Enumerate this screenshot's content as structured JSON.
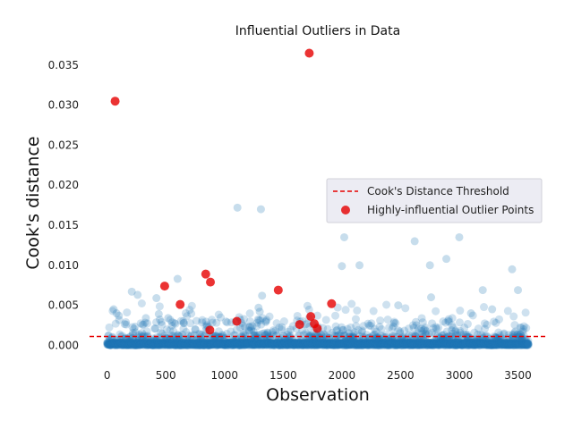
{
  "chart_data": {
    "type": "scatter",
    "title": "Influential Outliers in Data",
    "xlabel": "Observation",
    "ylabel": "Cook's distance",
    "xlim": [
      -150,
      3740
    ],
    "ylim": [
      -0.0013,
      0.037
    ],
    "xticks": [
      0,
      500,
      1000,
      1500,
      2000,
      2500,
      3000,
      3500
    ],
    "xtick_labels": [
      "0",
      "500",
      "1000",
      "1500",
      "2000",
      "2500",
      "3000",
      "3500"
    ],
    "yticks": [
      0.0,
      0.005,
      0.01,
      0.015,
      0.02,
      0.025,
      0.03,
      0.035
    ],
    "ytick_labels": [
      "0.000",
      "0.005",
      "0.010",
      "0.015",
      "0.020",
      "0.025",
      "0.030",
      "0.035"
    ],
    "grid": false,
    "threshold": {
      "name": "Cook's Distance Threshold",
      "y": 0.0011,
      "color": "#e60000"
    },
    "series": [
      {
        "name": "Highly-influential Outlier Points",
        "color": "#e60000",
        "points": [
          [
            68,
            0.0305
          ],
          [
            1722,
            0.0365
          ],
          [
            490,
            0.0074
          ],
          [
            622,
            0.0051
          ],
          [
            840,
            0.0089
          ],
          [
            880,
            0.0079
          ],
          [
            875,
            0.0019
          ],
          [
            1105,
            0.003
          ],
          [
            1458,
            0.0069
          ],
          [
            1640,
            0.0026
          ],
          [
            1735,
            0.0036
          ],
          [
            1765,
            0.0027
          ],
          [
            1790,
            0.0021
          ],
          [
            1912,
            0.0052
          ]
        ]
      }
    ],
    "background_points": {
      "color": "#1f77b4",
      "count": 3600,
      "x_range": [
        0,
        3590
      ],
      "notable_points": [
        [
          55,
          0.0045
        ],
        [
          80,
          0.004
        ],
        [
          100,
          0.0037
        ],
        [
          210,
          0.0067
        ],
        [
          260,
          0.0063
        ],
        [
          330,
          0.0034
        ],
        [
          420,
          0.0059
        ],
        [
          440,
          0.0039
        ],
        [
          520,
          0.0034
        ],
        [
          600,
          0.0083
        ],
        [
          1110,
          0.0172
        ],
        [
          1310,
          0.017
        ],
        [
          1320,
          0.0062
        ],
        [
          1290,
          0.0047
        ],
        [
          1300,
          0.0042
        ],
        [
          2020,
          0.0135
        ],
        [
          2000,
          0.0099
        ],
        [
          2150,
          0.01
        ],
        [
          2620,
          0.013
        ],
        [
          2750,
          0.01
        ],
        [
          2890,
          0.0108
        ],
        [
          3000,
          0.0135
        ],
        [
          2760,
          0.006
        ],
        [
          3200,
          0.0069
        ],
        [
          3450,
          0.0095
        ],
        [
          3500,
          0.0069
        ],
        [
          2480,
          0.005
        ],
        [
          3100,
          0.004
        ],
        [
          3280,
          0.0045
        ]
      ]
    },
    "legend": {
      "placement": "right"
    }
  }
}
